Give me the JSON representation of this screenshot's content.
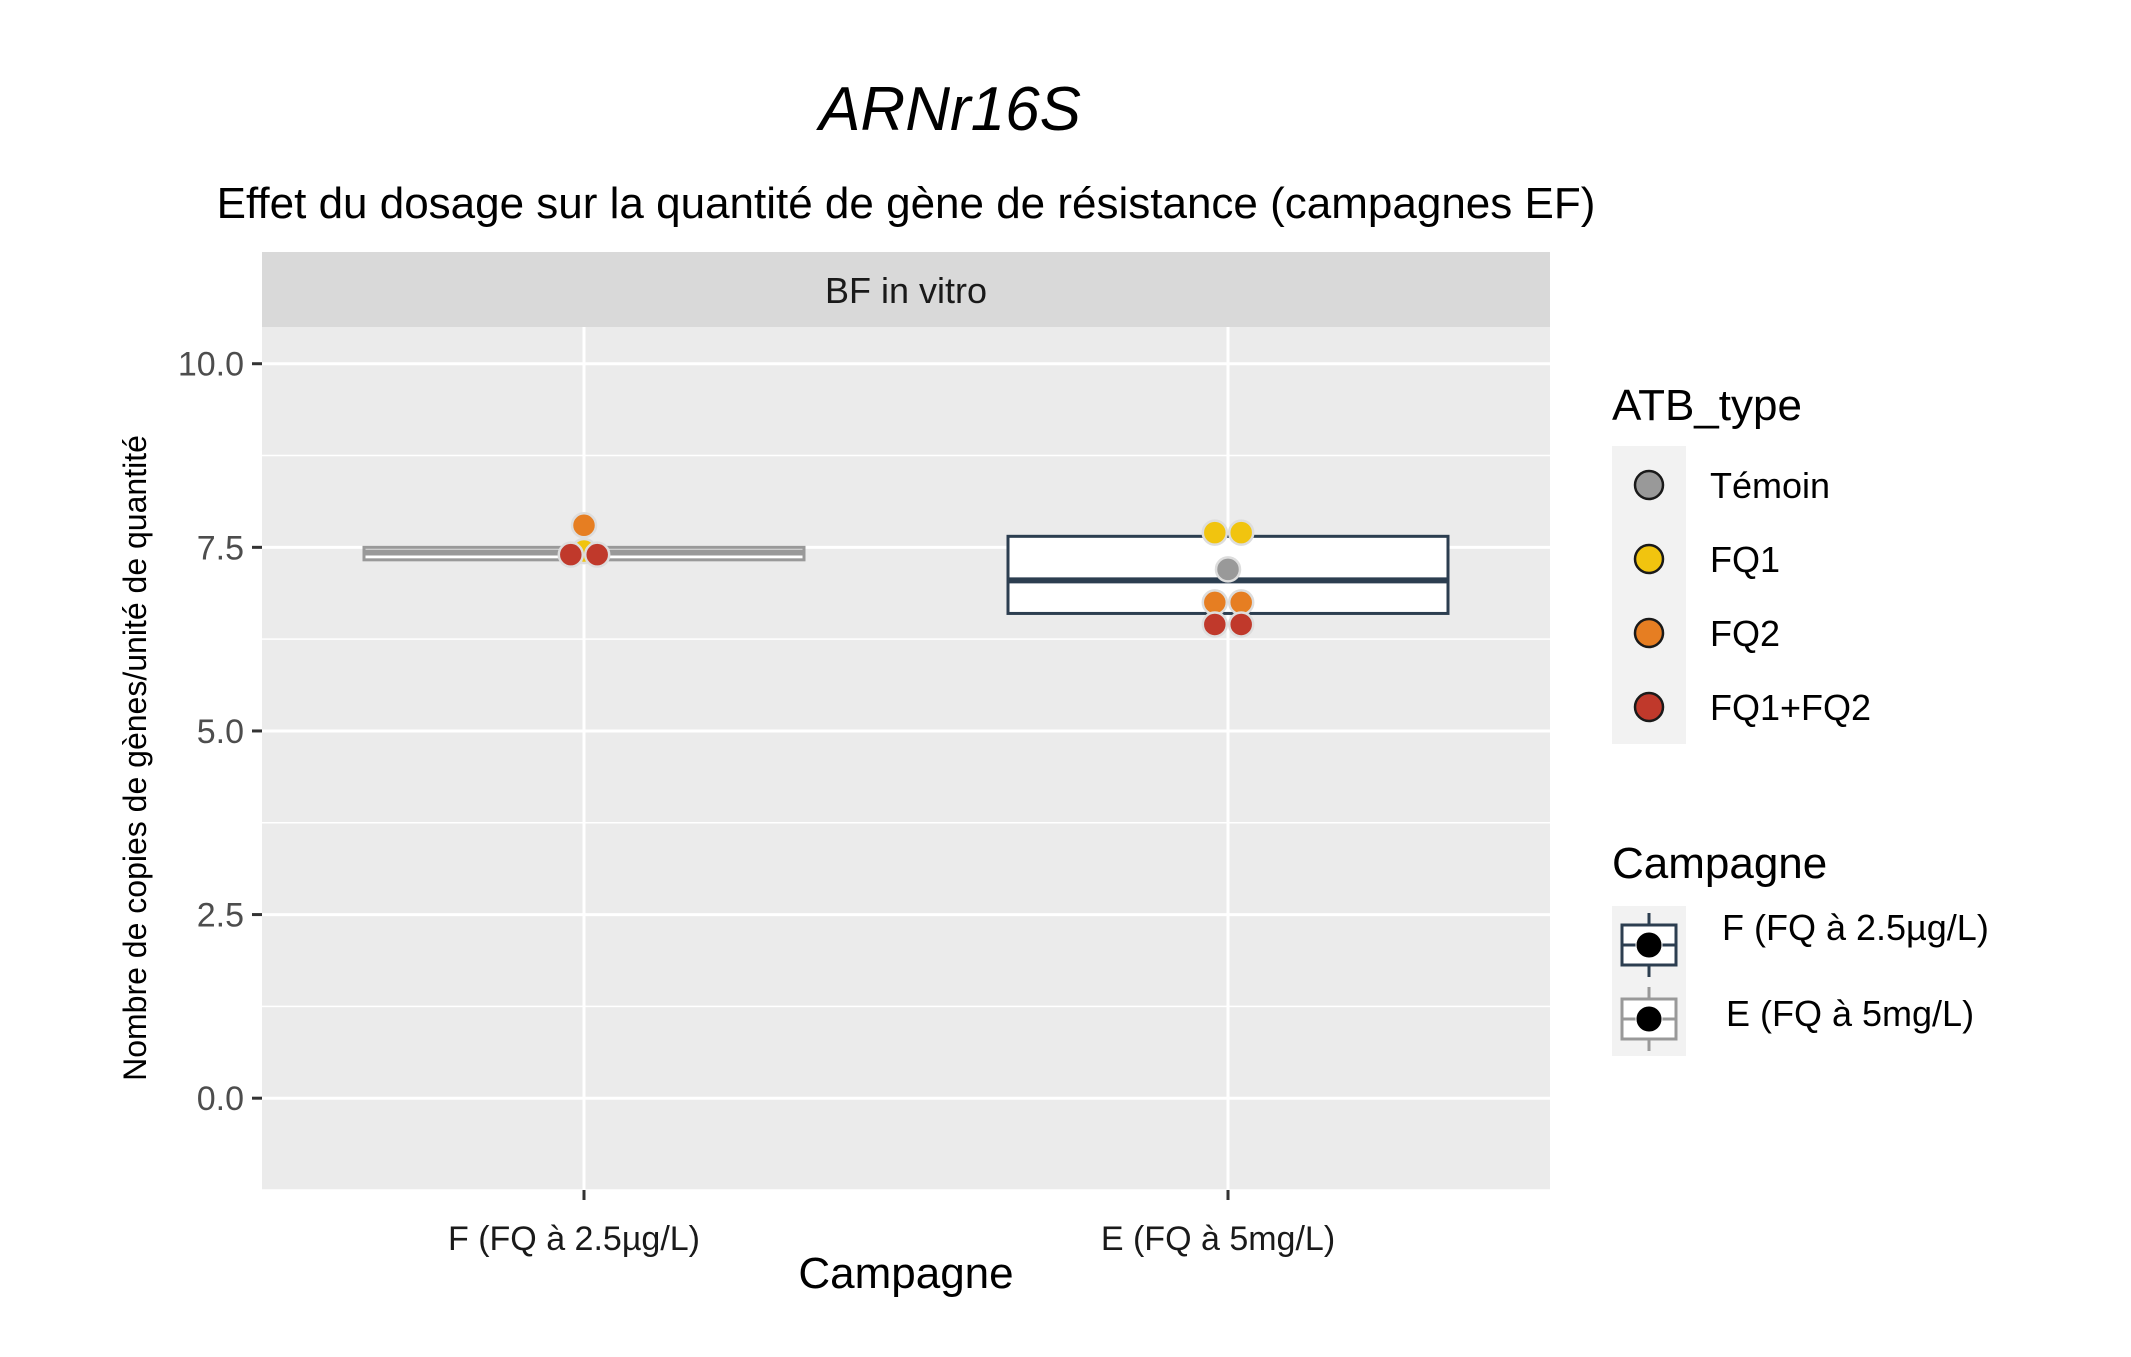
{
  "chart_data": {
    "type": "box",
    "title": "ARNr16S",
    "subtitle": "Effet du dosage sur la quantité de gène de résistance (campagnes EF)",
    "facet": "BF in vitro",
    "xlabel": "Campagne",
    "ylabel": "Nombre de copies de gènes/unité de quantité",
    "ylim": [
      -1.25,
      10.5
    ],
    "yticks": [
      0.0,
      2.5,
      5.0,
      7.5,
      10.0
    ],
    "ytick_labels": [
      "0.0",
      "2.5",
      "5.0",
      "7.5",
      "10.0"
    ],
    "categories": [
      "F (FQ à 2.5µg/L)",
      "E (FQ à 5mg/L)"
    ],
    "grid": true,
    "legend_position": "right",
    "boxes": [
      {
        "category": "F (FQ à 2.5µg/L)",
        "q1": 7.33,
        "median": 7.43,
        "q3": 7.5,
        "whisker_low": 7.33,
        "whisker_high": 7.5,
        "border_color": "#999999",
        "fill": "#ffffff"
      },
      {
        "category": "E (FQ à 5mg/L)",
        "q1": 6.6,
        "median": 7.05,
        "q3": 7.65,
        "whisker_low": 6.6,
        "whisker_high": 7.65,
        "border_color": "#2c3e50",
        "fill": "#ffffff"
      }
    ],
    "points": [
      {
        "category": "F (FQ à 2.5µg/L)",
        "atb_type": "Témoin",
        "value": 7.45,
        "offset": 0
      },
      {
        "category": "F (FQ à 2.5µg/L)",
        "atb_type": "FQ1",
        "value": 7.45,
        "offset": 0
      },
      {
        "category": "F (FQ à 2.5µg/L)",
        "atb_type": "FQ2",
        "value": 7.8,
        "offset": 0
      },
      {
        "category": "F (FQ à 2.5µg/L)",
        "atb_type": "FQ1+FQ2",
        "value": 7.4,
        "offset": -0.5
      },
      {
        "category": "F (FQ à 2.5µg/L)",
        "atb_type": "FQ1+FQ2",
        "value": 7.4,
        "offset": 0.5
      },
      {
        "category": "E (FQ à 5mg/L)",
        "atb_type": "FQ1",
        "value": 7.7,
        "offset": -0.5
      },
      {
        "category": "E (FQ à 5mg/L)",
        "atb_type": "FQ1",
        "value": 7.7,
        "offset": 0.5
      },
      {
        "category": "E (FQ à 5mg/L)",
        "atb_type": "Témoin",
        "value": 7.2,
        "offset": 0
      },
      {
        "category": "E (FQ à 5mg/L)",
        "atb_type": "FQ2",
        "value": 6.75,
        "offset": -0.5
      },
      {
        "category": "E (FQ à 5mg/L)",
        "atb_type": "FQ2",
        "value": 6.75,
        "offset": 0.5
      },
      {
        "category": "E (FQ à 5mg/L)",
        "atb_type": "FQ1+FQ2",
        "value": 6.45,
        "offset": -0.5
      },
      {
        "category": "E (FQ à 5mg/L)",
        "atb_type": "FQ1+FQ2",
        "value": 6.45,
        "offset": 0.5
      }
    ],
    "legend_atb": {
      "title": "ATB_type",
      "items": [
        {
          "label": "Témoin",
          "color": "#999999"
        },
        {
          "label": "FQ1",
          "color": "#f1c40f"
        },
        {
          "label": "FQ2",
          "color": "#e67e22"
        },
        {
          "label": "FQ1+FQ2",
          "color": "#c0392b"
        }
      ]
    },
    "legend_campagne": {
      "title": "Campagne",
      "items": [
        {
          "label": "F (FQ à 2.5µg/L)",
          "color": "#2c3e50"
        },
        {
          "label": "E (FQ à 5mg/L)",
          "color": "#999999"
        }
      ]
    },
    "colors": {
      "panel_bg": "#ebebeb",
      "strip_bg": "#d9d9d9",
      "grid": "#ffffff"
    }
  }
}
